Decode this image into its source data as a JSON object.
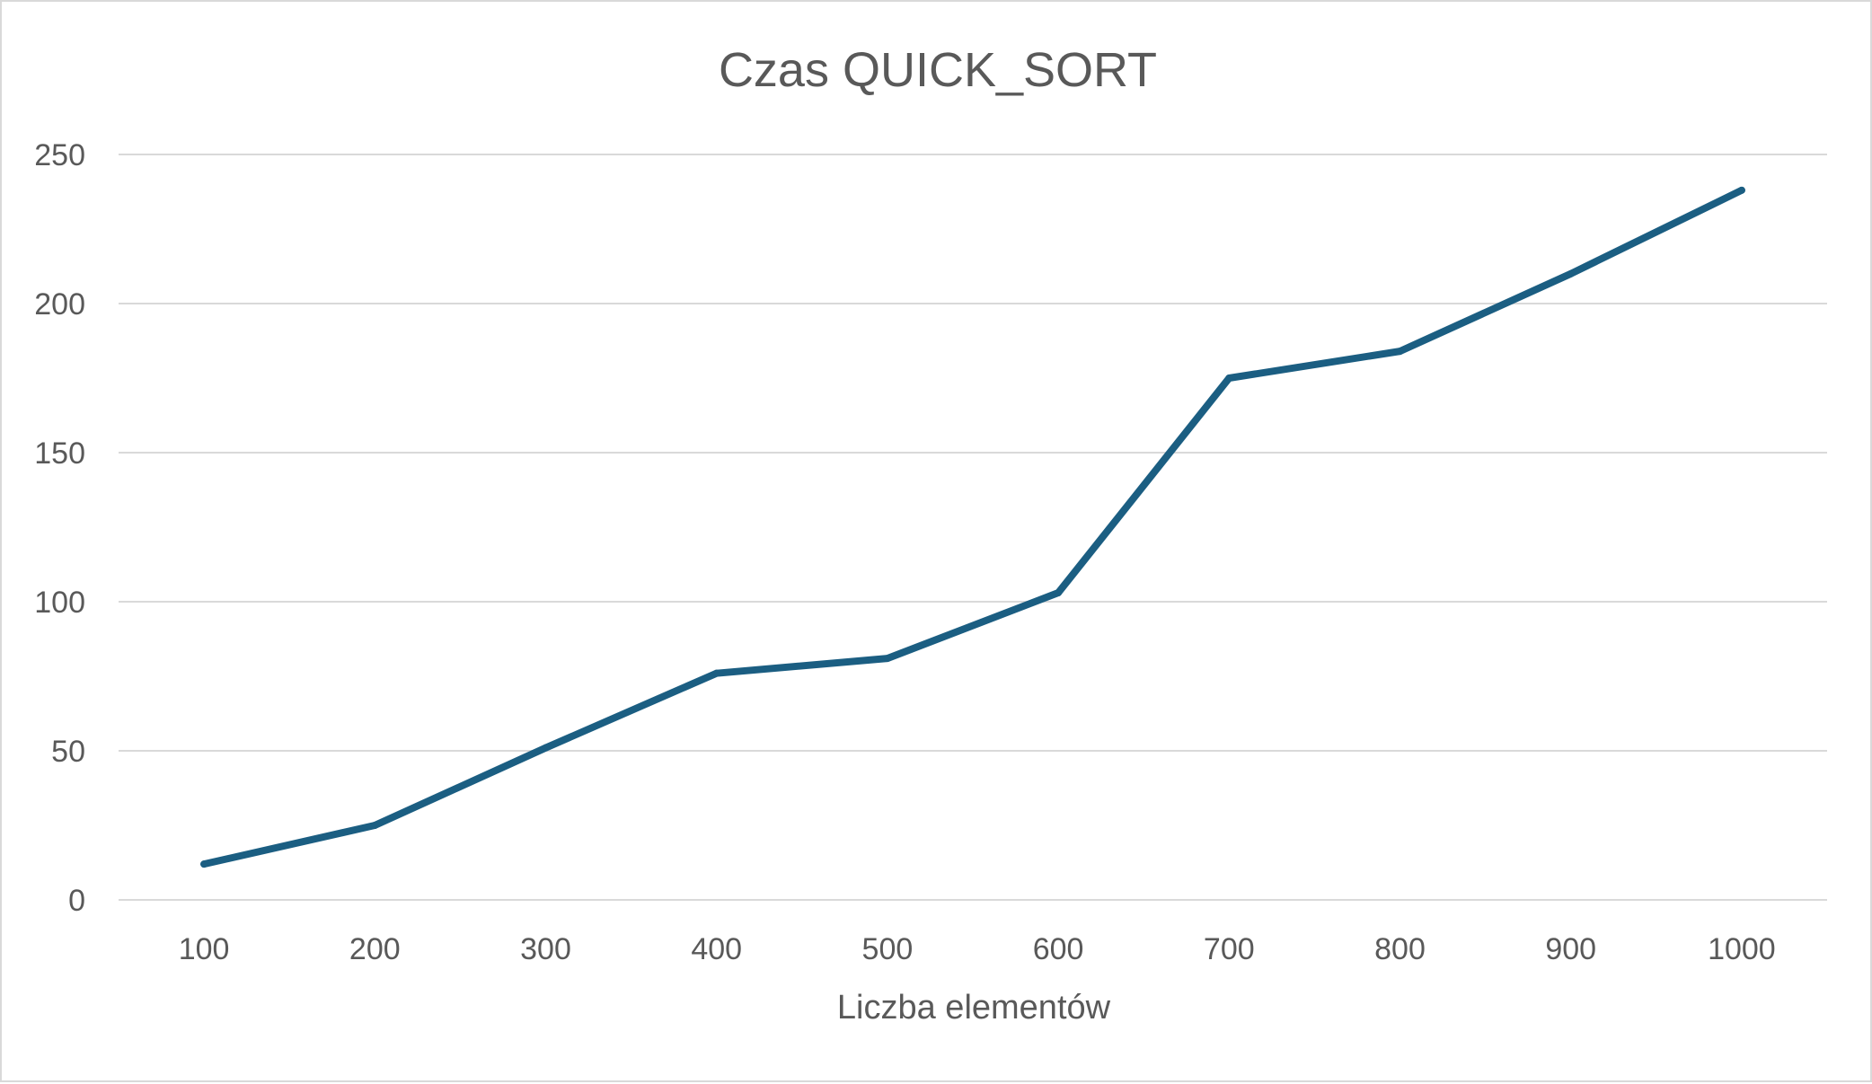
{
  "chart_data": {
    "type": "line",
    "title": "Czas QUICK_SORT",
    "xlabel": "Liczba elementów",
    "ylabel": "",
    "categories": [
      "100",
      "200",
      "300",
      "400",
      "500",
      "600",
      "700",
      "800",
      "900",
      "1000"
    ],
    "series": [
      {
        "values": [
          12,
          25,
          51,
          76,
          81,
          103,
          175,
          184,
          210,
          238
        ],
        "color": "#1b5e82"
      }
    ],
    "ylim": [
      0,
      250
    ],
    "yticks": [
      "0",
      "50",
      "100",
      "150",
      "200",
      "250"
    ],
    "grid": true,
    "legend": "none"
  }
}
